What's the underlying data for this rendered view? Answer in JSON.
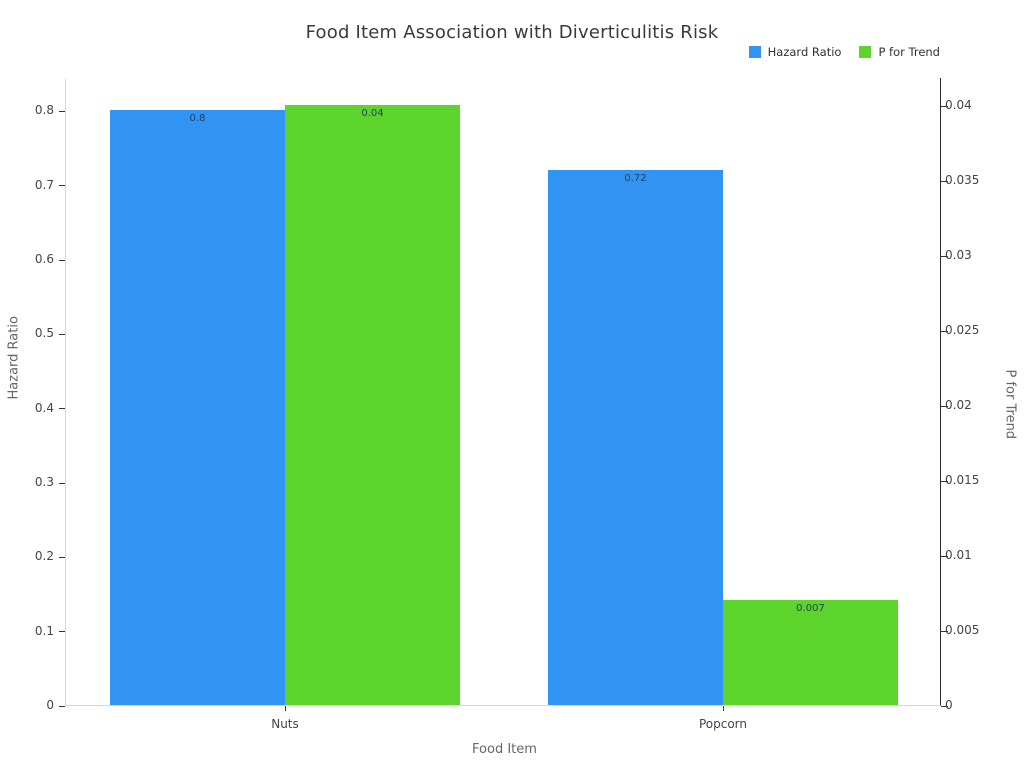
{
  "title": "Food Item Association with Diverticulitis Risk",
  "chart_data": {
    "type": "bar",
    "categories": [
      "Nuts",
      "Popcorn"
    ],
    "series": [
      {
        "name": "Hazard Ratio",
        "axis": "left",
        "color": "#3193F2",
        "values": [
          0.8,
          0.72
        ],
        "value_labels": [
          "0.8",
          "0.72"
        ]
      },
      {
        "name": "P for Trend",
        "axis": "right",
        "color": "#5CD42C",
        "values": [
          0.04,
          0.007
        ],
        "value_labels": [
          "0.04",
          "0.007"
        ]
      }
    ],
    "xlabel": "Food Item",
    "left_axis": {
      "label": "Hazard Ratio",
      "range": [
        0,
        0.845
      ],
      "ticks": [
        {
          "value": 0,
          "label": "0"
        },
        {
          "value": 0.1,
          "label": "0.1"
        },
        {
          "value": 0.2,
          "label": "0.2"
        },
        {
          "value": 0.3,
          "label": "0.3"
        },
        {
          "value": 0.4,
          "label": "0.4"
        },
        {
          "value": 0.5,
          "label": "0.5"
        },
        {
          "value": 0.6,
          "label": "0.6"
        },
        {
          "value": 0.7,
          "label": "0.7"
        },
        {
          "value": 0.8,
          "label": "0.8"
        }
      ]
    },
    "right_axis": {
      "label": "P for Trend",
      "range": [
        0,
        0.0419
      ],
      "ticks": [
        {
          "value": 0,
          "label": "0"
        },
        {
          "value": 0.005,
          "label": "0.005"
        },
        {
          "value": 0.01,
          "label": "0.01"
        },
        {
          "value": 0.015,
          "label": "0.015"
        },
        {
          "value": 0.02,
          "label": "0.02"
        },
        {
          "value": 0.025,
          "label": "0.025"
        },
        {
          "value": 0.03,
          "label": "0.03"
        },
        {
          "value": 0.035,
          "label": "0.035"
        },
        {
          "value": 0.04,
          "label": "0.04"
        }
      ]
    },
    "legend_position": "top-right",
    "grid": false,
    "background": "#ffffff"
  }
}
